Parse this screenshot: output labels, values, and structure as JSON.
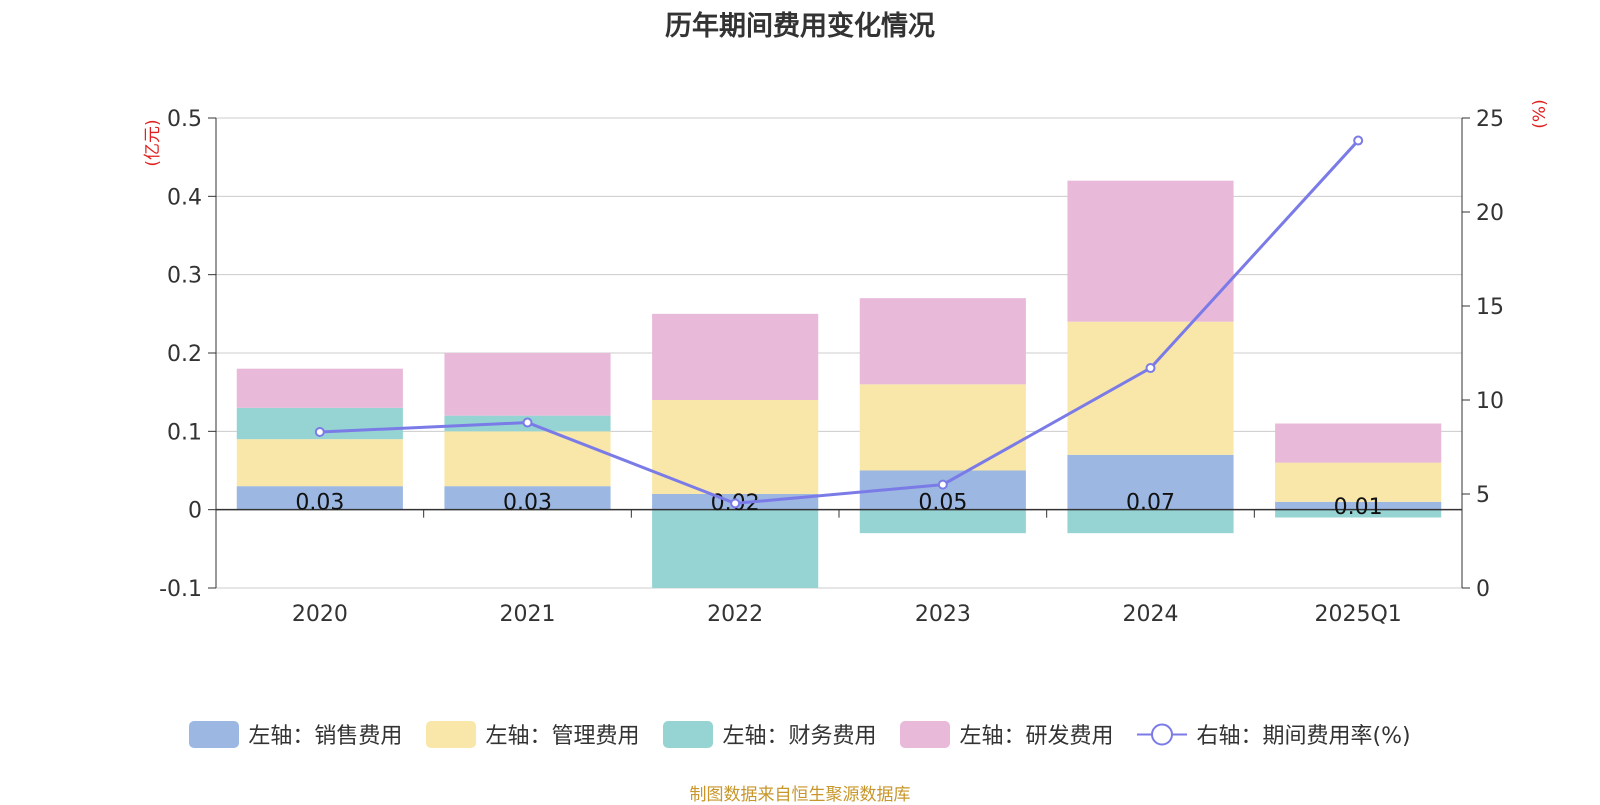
{
  "chart_data": {
    "type": "bar",
    "title": "历年期间费用变化情况",
    "left_axis_unit": "(亿元)",
    "right_axis_unit": "(%)",
    "categories": [
      "2020",
      "2021",
      "2022",
      "2023",
      "2024",
      "2025Q1"
    ],
    "left_ylim": [
      -0.1,
      0.5
    ],
    "left_ticks": [
      "-0.1",
      "0",
      "0.1",
      "0.2",
      "0.3",
      "0.4",
      "0.5"
    ],
    "right_ylim": [
      0,
      25
    ],
    "right_ticks": [
      "0",
      "5",
      "10",
      "15",
      "20",
      "25"
    ],
    "grid": true,
    "legend_position": "bottom",
    "series": [
      {
        "name": "左轴：销售费用",
        "type": "bar",
        "axis": "left",
        "color": "#9bb7e2",
        "values": [
          0.03,
          0.03,
          0.02,
          0.05,
          0.07,
          0.01
        ],
        "labels": [
          "0.03",
          "0.03",
          "0.02",
          "0.05",
          "0.07",
          "0.01"
        ]
      },
      {
        "name": "左轴：管理费用",
        "type": "bar",
        "axis": "left",
        "color": "#f9e7a9",
        "values": [
          0.06,
          0.07,
          0.12,
          0.11,
          0.17,
          0.05
        ]
      },
      {
        "name": "左轴：财务费用",
        "type": "bar",
        "axis": "left",
        "color": "#96d4d4",
        "values": [
          0.04,
          0.02,
          -0.1,
          -0.03,
          -0.03,
          -0.01
        ]
      },
      {
        "name": "左轴：研发费用",
        "type": "bar",
        "axis": "left",
        "color": "#e8b9d9",
        "values": [
          0.05,
          0.08,
          0.11,
          0.11,
          0.18,
          0.05
        ]
      },
      {
        "name": "右轴：期间费用率(%)",
        "type": "line",
        "axis": "right",
        "color": "#7b7be8",
        "values": [
          8.3,
          8.8,
          4.5,
          5.5,
          11.7,
          23.8
        ]
      }
    ]
  },
  "source_note": "制图数据来自恒生聚源数据库"
}
